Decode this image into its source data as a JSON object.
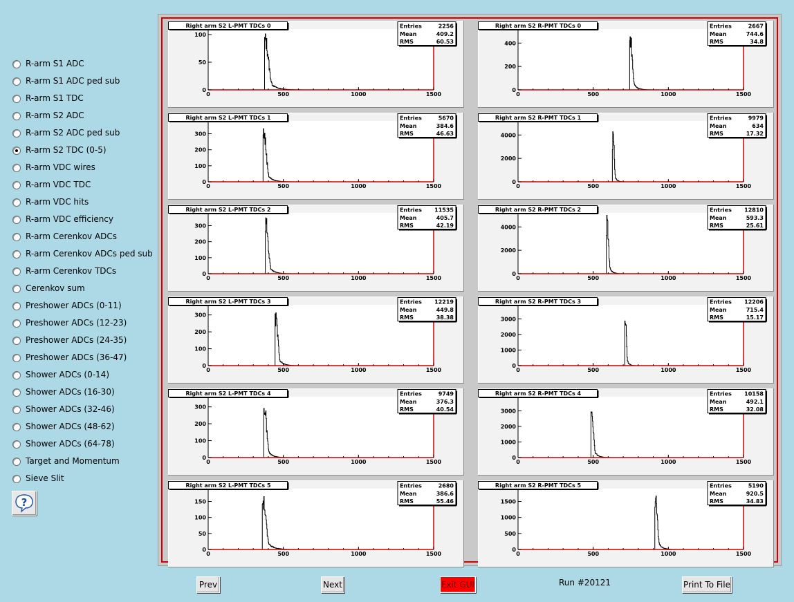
{
  "sidebar": {
    "items": [
      {
        "label": "R-arm S1 ADC",
        "checked": false
      },
      {
        "label": "R-arm S1 ADC ped sub",
        "checked": false
      },
      {
        "label": "R-arm S1 TDC",
        "checked": false
      },
      {
        "label": "R-arm S2 ADC",
        "checked": false
      },
      {
        "label": "R-arm S2 ADC ped sub",
        "checked": false
      },
      {
        "label": "R-arm S2 TDC (0-5)",
        "checked": true
      },
      {
        "label": "R-arm VDC wires",
        "checked": false
      },
      {
        "label": "R-arm VDC TDC",
        "checked": false
      },
      {
        "label": "R-arm VDC hits",
        "checked": false
      },
      {
        "label": "R-arm VDC efficiency",
        "checked": false
      },
      {
        "label": "R-arm Cerenkov ADCs",
        "checked": false
      },
      {
        "label": "R-arm Cerenkov ADCs ped sub",
        "checked": false
      },
      {
        "label": "R-arm Cerenkov TDCs",
        "checked": false
      },
      {
        "label": "Cerenkov sum",
        "checked": false
      },
      {
        "label": "Preshower ADCs (0-11)",
        "checked": false
      },
      {
        "label": "Preshower ADCs (12-23)",
        "checked": false
      },
      {
        "label": "Preshower ADCs (24-35)",
        "checked": false
      },
      {
        "label": "Preshower ADCs (36-47)",
        "checked": false
      },
      {
        "label": "Shower ADCs (0-14)",
        "checked": false
      },
      {
        "label": "Shower ADCs (16-30)",
        "checked": false
      },
      {
        "label": "Shower ADCs (32-46)",
        "checked": false
      },
      {
        "label": "Shower ADCs (48-62)",
        "checked": false
      },
      {
        "label": "Shower ADCs (64-78)",
        "checked": false
      },
      {
        "label": "Target and Momentum",
        "checked": false
      },
      {
        "label": "Sieve Slit",
        "checked": false
      }
    ],
    "help_icon": "question-mark-balloon-icon"
  },
  "buttons": {
    "prev": "Prev",
    "next": "Next",
    "exit": "Exit GUI",
    "print": "Print To File"
  },
  "run_label": "Run #20121",
  "colors": {
    "background": "#add8e6",
    "canvas": "#c9c9c9",
    "frame": "#d00000",
    "histogram_line": "#000000",
    "axis_frame": "#cc0000"
  },
  "stat_labels": [
    "Entries",
    "Mean",
    "RMS"
  ],
  "chart_data": [
    {
      "type": "histogram",
      "title": "Right arm S2 L-PMT TDCs 0",
      "xlim": [
        0,
        1500
      ],
      "xticks": [
        0,
        500,
        1000,
        1500
      ],
      "ylim": [
        0,
        110
      ],
      "yticks": [
        0,
        50,
        100
      ],
      "peak_x": 380,
      "peak_y": 105,
      "mean": 409.2,
      "rms": 60.53,
      "entries": "2256",
      "mean_label": "409.2",
      "rms_label": "60.53"
    },
    {
      "type": "histogram",
      "title": "Right arm S2 R-PMT TDCs 0",
      "xlim": [
        0,
        1500
      ],
      "xticks": [
        0,
        500,
        1000,
        1500
      ],
      "ylim": [
        0,
        520
      ],
      "yticks": [
        0,
        200,
        400
      ],
      "peak_x": 748,
      "peak_y": 510,
      "mean": 744.6,
      "rms": 34.8,
      "entries": "2667",
      "mean_label": "744.6",
      "rms_label": "34.8"
    },
    {
      "type": "histogram",
      "title": "Right arm S2 L-PMT TDCs 1",
      "xlim": [
        0,
        1500
      ],
      "xticks": [
        0,
        500,
        1000,
        1500
      ],
      "ylim": [
        0,
        380
      ],
      "yticks": [
        0,
        100,
        200,
        300
      ],
      "peak_x": 370,
      "peak_y": 360,
      "mean": 384.6,
      "rms": 46.63,
      "entries": "5670",
      "mean_label": "384.6",
      "rms_label": "46.63"
    },
    {
      "type": "histogram",
      "title": "Right arm S2 R-PMT TDCs 1",
      "xlim": [
        0,
        1500
      ],
      "xticks": [
        0,
        500,
        1000,
        1500
      ],
      "ylim": [
        0,
        5200
      ],
      "yticks": [
        0,
        2000,
        4000
      ],
      "peak_x": 634,
      "peak_y": 5000,
      "mean": 634,
      "rms": 17.32,
      "entries": "9979",
      "mean_label": "634",
      "rms_label": "17.32"
    },
    {
      "type": "histogram",
      "title": "Right arm S2 L-PMT TDCs 2",
      "xlim": [
        0,
        1500
      ],
      "xticks": [
        0,
        500,
        1000,
        1500
      ],
      "ylim": [
        0,
        380
      ],
      "yticks": [
        0,
        100,
        200,
        300
      ],
      "peak_x": 385,
      "peak_y": 360,
      "mean": 405.7,
      "rms": 42.19,
      "entries": "11535",
      "mean_label": "405.7",
      "rms_label": "42.19"
    },
    {
      "type": "histogram",
      "title": "Right arm S2 R-PMT TDCs 2",
      "xlim": [
        0,
        1500
      ],
      "xticks": [
        0,
        500,
        1000,
        1500
      ],
      "ylim": [
        0,
        5200
      ],
      "yticks": [
        0,
        2000,
        4000
      ],
      "peak_x": 593,
      "peak_y": 5100,
      "mean": 593.3,
      "rms": 25.61,
      "entries": "12810",
      "mean_label": "593.3",
      "rms_label": "25.61"
    },
    {
      "type": "histogram",
      "title": "Right arm S2 L-PMT TDCs 3",
      "xlim": [
        0,
        1500
      ],
      "xticks": [
        0,
        500,
        1000,
        1500
      ],
      "ylim": [
        0,
        360
      ],
      "yticks": [
        0,
        100,
        200,
        300
      ],
      "peak_x": 450,
      "peak_y": 325,
      "mean": 449.8,
      "rms": 38.38,
      "entries": "12219",
      "mean_label": "449.8",
      "rms_label": "38.38"
    },
    {
      "type": "histogram",
      "title": "Right arm S2 R-PMT TDCs 3",
      "xlim": [
        0,
        1500
      ],
      "xticks": [
        0,
        500,
        1000,
        1500
      ],
      "ylim": [
        0,
        3900
      ],
      "yticks": [
        0,
        1000,
        2000,
        3000
      ],
      "peak_x": 715,
      "peak_y": 3700,
      "mean": 715.4,
      "rms": 15.17,
      "entries": "12206",
      "mean_label": "715.4",
      "rms_label": "15.17"
    },
    {
      "type": "histogram",
      "title": "Right arm S2 L-PMT TDCs 4",
      "xlim": [
        0,
        1500
      ],
      "xticks": [
        0,
        500,
        1000,
        1500
      ],
      "ylim": [
        0,
        360
      ],
      "yticks": [
        0,
        100,
        200,
        300
      ],
      "peak_x": 375,
      "peak_y": 335,
      "mean": 376.3,
      "rms": 40.54,
      "entries": "9749",
      "mean_label": "376.3",
      "rms_label": "40.54"
    },
    {
      "type": "histogram",
      "title": "Right arm S2 R-PMT TDCs 4",
      "xlim": [
        0,
        1500
      ],
      "xticks": [
        0,
        500,
        1000,
        1500
      ],
      "ylim": [
        0,
        3900
      ],
      "yticks": [
        0,
        1000,
        2000,
        3000
      ],
      "peak_x": 490,
      "peak_y": 3600,
      "mean": 492.1,
      "rms": 32.08,
      "entries": "10158",
      "mean_label": "492.1",
      "rms_label": "32.08"
    },
    {
      "type": "histogram",
      "title": "Right arm S2 L-PMT TDCs 5",
      "xlim": [
        0,
        1500
      ],
      "xticks": [
        0,
        500,
        1000,
        1500
      ],
      "ylim": [
        0,
        190
      ],
      "yticks": [
        0,
        50,
        100,
        150
      ],
      "peak_x": 365,
      "peak_y": 175,
      "mean": 386.6,
      "rms": 55.46,
      "entries": "2680",
      "mean_label": "386.6",
      "rms_label": "55.46"
    },
    {
      "type": "histogram",
      "title": "Right arm S2 R-PMT TDCs 5",
      "xlim": [
        0,
        1500
      ],
      "xticks": [
        0,
        500,
        1000,
        1500
      ],
      "ylim": [
        0,
        1900
      ],
      "yticks": [
        0,
        500,
        1000,
        1500
      ],
      "peak_x": 915,
      "peak_y": 1770,
      "mean": 920.5,
      "rms": 34.83,
      "entries": "5190",
      "mean_label": "920.5",
      "rms_label": "34.83"
    }
  ]
}
